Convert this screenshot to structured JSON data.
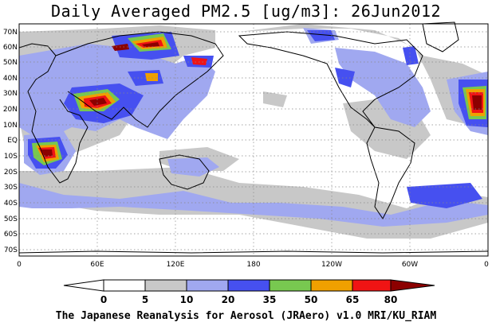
{
  "title": "Daily Averaged PM2.5 [ug/m3]: 26Jun2012",
  "footer": "The Japanese Reanalysis for Aerosol (JRAero) v1.0 MRI/KU_RIAM",
  "axes": {
    "lat_labels": [
      "70N",
      "60N",
      "50N",
      "40N",
      "30N",
      "20N",
      "10N",
      "EQ",
      "10S",
      "20S",
      "30S",
      "40S",
      "50S",
      "60S",
      "70S"
    ],
    "lon_labels": [
      "0",
      "60E",
      "120E",
      "180",
      "120W",
      "60W",
      "0"
    ],
    "grid": "dotted"
  },
  "colorbar": {
    "labels": [
      "0",
      "5",
      "10",
      "20",
      "35",
      "50",
      "65",
      "80"
    ],
    "colors": [
      "#ffffff",
      "#c8c8c8",
      "#a0a8f0",
      "#4650f0",
      "#78c850",
      "#f0a000",
      "#f01414",
      "#8c0000"
    ]
  },
  "map_colors": {
    "land_outline": "#000000",
    "ocean": "#ffffff"
  }
}
